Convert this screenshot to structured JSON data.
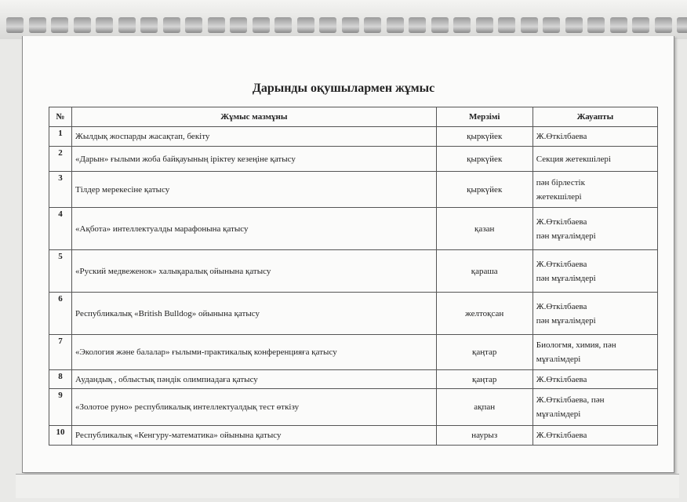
{
  "title": "Дарынды оқушылармен жұмыс",
  "table": {
    "headers": [
      "№",
      "Жұмыс мазмұны",
      "Мерзімі",
      "Жауапты"
    ],
    "rows": [
      {
        "num": "1",
        "content": "Жылдық жоспарды жасақтап, бекіту",
        "date": "қыркүйек",
        "resp": [
          "Ж.Өткілбаева"
        ],
        "h": 25
      },
      {
        "num": "2",
        "content": "«Дарын» ғылыми жоба байқауының іріктеу кезеңіне  қатысу",
        "date": "қыркүйек",
        "resp": [
          "Секция жетекшілері"
        ],
        "h": 32
      },
      {
        "num": "3",
        "content": "Тілдер мерекесіне қатысу",
        "date": "қыркүйек",
        "resp": [
          "пән бірлестік",
          "жетекшілері"
        ],
        "h": 46
      },
      {
        "num": "4",
        "content": "«Ақбота» интеллектуалды марафонына қатысу",
        "date": "қазан",
        "resp": [
          "Ж.Өткілбаева",
          " пән мұғалімдері"
        ],
        "h": 54
      },
      {
        "num": "5",
        "content": "«Руский медвеженок» халықаралық ойынына қатысу",
        "date": "қараша",
        "resp": [
          "Ж.Өткілбаева",
          " пән мұғалімдері"
        ],
        "h": 54
      },
      {
        "num": "6",
        "content": "Республикалық «British Bulldog» ойынына қатысу",
        "date": "желтоқсан",
        "resp": [
          "Ж.Өткілбаева",
          " пән мұғалімдері"
        ],
        "h": 54
      },
      {
        "num": "7",
        "content": "«Экология және балалар» ғылыми-практикалық конференцияға қатысу",
        "date": "қаңтар",
        "resp": [
          "Биологмя, химия, пән",
          "мұғалімдері"
        ],
        "h": 45
      },
      {
        "num": "8",
        "content": "Аудандық , облыстық пәндік олимпиадаға қатысу",
        "date": "қаңтар",
        "resp": [
          "Ж.Өткілбаева"
        ],
        "h": 24
      },
      {
        "num": "9",
        "content": "«Золотое руно» республикалық интеллектуалдық тест өткізу",
        "date": "ақпан",
        "resp": [
          "Ж.Өткілбаева, пән",
          "мұғалімдері"
        ],
        "h": 47
      },
      {
        "num": "10",
        "content": "Республикалық «Кенгуру-математика» ойынына қатысу",
        "date": "наурыз",
        "resp": [
          " Ж.Өткілбаева"
        ],
        "h": 25
      }
    ]
  }
}
